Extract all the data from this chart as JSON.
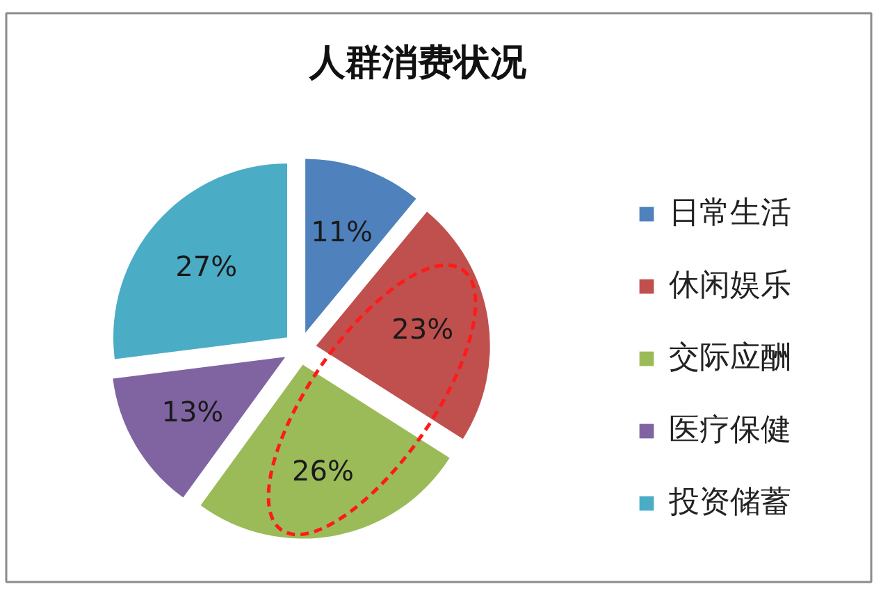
{
  "chart_data": {
    "type": "pie",
    "title": "人群消费状况",
    "categories": [
      "日常生活",
      "休闲娱乐",
      "交际应酬",
      "医疗保健",
      "投资储蓄"
    ],
    "values": [
      11,
      23,
      26,
      13,
      27
    ],
    "colors": [
      "#4f81bd",
      "#c0504d",
      "#9bbb59",
      "#8064a2",
      "#4bacc6"
    ],
    "value_labels": [
      "11%",
      "23%",
      "26%",
      "13%",
      "27%"
    ],
    "legend": "right"
  }
}
